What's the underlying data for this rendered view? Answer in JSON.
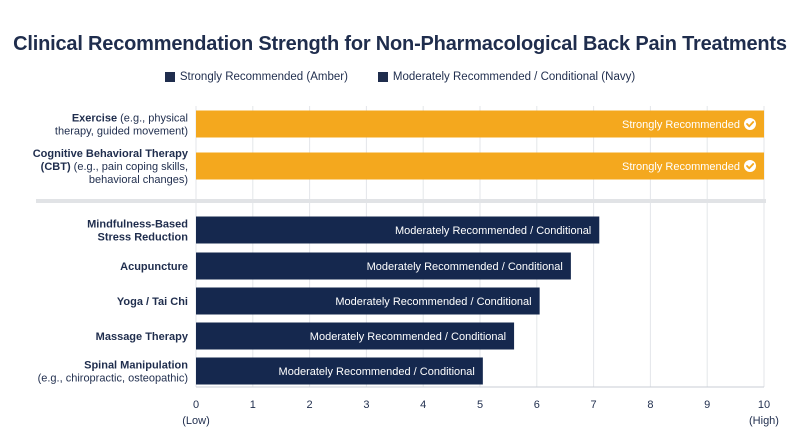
{
  "chart_data": {
    "type": "bar",
    "orientation": "horizontal",
    "title": "Clinical Recommendation Strength for Non-Pharmacological Back Pain Treatments",
    "legend": [
      {
        "label": "Strongly Recommended (Amber)",
        "color": "#f4a81e"
      },
      {
        "label": "Moderately Recommended / Conditional (Navy)",
        "color": "#15284e"
      }
    ],
    "categories": [
      {
        "lines": [
          [
            "Exercise",
            " (e.g., physical"
          ],
          [
            "",
            "therapy, guided movement)"
          ]
        ],
        "value": 10,
        "group": "strong",
        "bar_label": "Strongly Recommended"
      },
      {
        "lines": [
          [
            "Cognitive Behavioral Therapy",
            ""
          ],
          [
            "(CBT)",
            " (e.g., pain coping skills,"
          ],
          [
            "",
            "behavioral changes)"
          ]
        ],
        "value": 10,
        "group": "strong",
        "bar_label": "Strongly Recommended"
      },
      {
        "lines": [
          [
            "Mindfulness-Based",
            ""
          ],
          [
            "Stress Reduction",
            ""
          ]
        ],
        "value": 7.1,
        "group": "moderate",
        "bar_label": "Moderately Recommended / Conditional"
      },
      {
        "lines": [
          [
            "Acupuncture",
            ""
          ]
        ],
        "value": 6.6,
        "group": "moderate",
        "bar_label": "Moderately Recommended / Conditional"
      },
      {
        "lines": [
          [
            "Yoga / Tai Chi",
            ""
          ]
        ],
        "value": 6.05,
        "group": "moderate",
        "bar_label": "Moderately Recommended / Conditional"
      },
      {
        "lines": [
          [
            "Massage Therapy",
            ""
          ]
        ],
        "value": 5.6,
        "group": "moderate",
        "bar_label": "Moderately Recommended / Conditional"
      },
      {
        "lines": [
          [
            "Spinal Manipulation",
            ""
          ],
          [
            "",
            "(e.g., chiropractic, osteopathic)"
          ]
        ],
        "value": 5.05,
        "group": "moderate",
        "bar_label": "Moderately Recommended / Conditional"
      }
    ],
    "xlim": [
      0,
      10
    ],
    "xticks": [
      0,
      1,
      2,
      3,
      4,
      5,
      6,
      7,
      8,
      9,
      10
    ],
    "xtick_sublabels": {
      "0": "(Low)",
      "10": "(High)"
    },
    "grid": true,
    "colors": {
      "strong": "#f4a81e",
      "moderate": "#15284e"
    }
  }
}
